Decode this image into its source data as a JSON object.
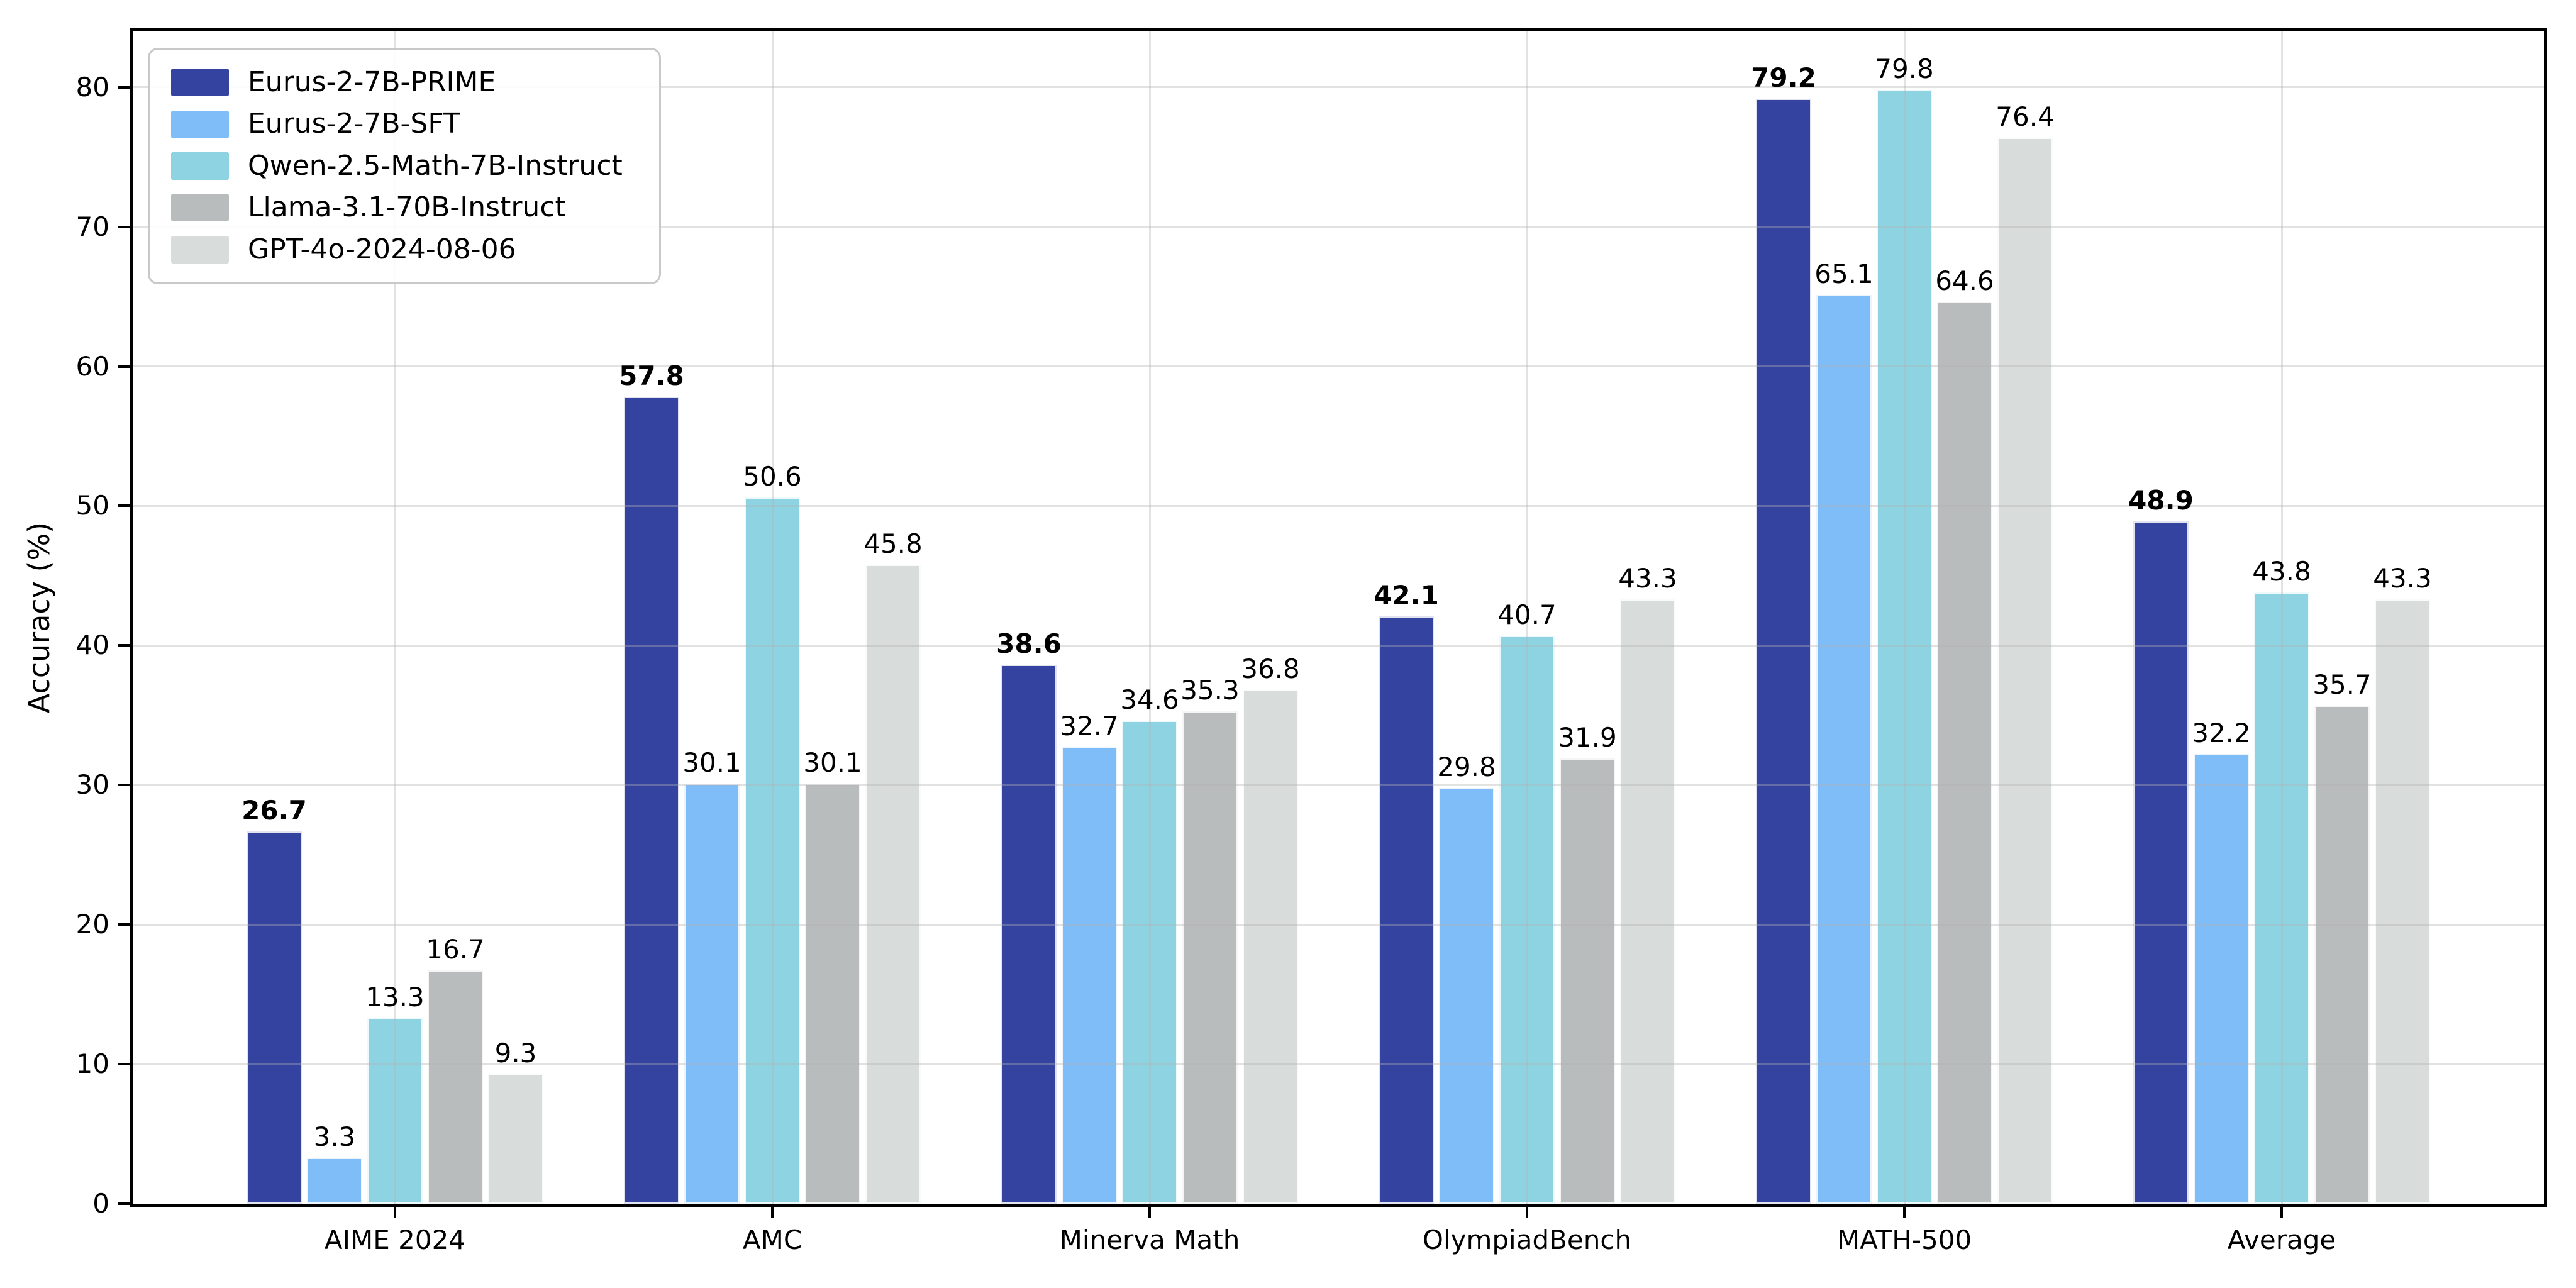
{
  "figure": {
    "background": "#ffffff"
  },
  "colors": {
    "spine": "#000000",
    "grid": "#e5e5e5",
    "text": "#000000",
    "legend_border": "#c9c9c9",
    "legend_background": "#ffffff"
  },
  "y_axis": {
    "title": "Accuracy (%)"
  },
  "chart_data": {
    "type": "bar",
    "title": "",
    "xlabel": "",
    "ylabel": "Accuracy (%)",
    "ylim": [
      0,
      84
    ],
    "yticks": [
      0,
      10,
      20,
      30,
      40,
      50,
      60,
      70,
      80
    ],
    "grid": true,
    "grid_vertical_at_categories": true,
    "legend_position": "upper-left",
    "value_labels": true,
    "categories": [
      "AIME 2024",
      "AMC",
      "Minerva Math",
      "OlympiadBench",
      "MATH-500",
      "Average"
    ],
    "series": [
      {
        "name": "Eurus-2-7B-PRIME",
        "color": "#3543a0",
        "labels_bold": true,
        "values": [
          26.7,
          57.8,
          38.6,
          42.1,
          79.2,
          48.9
        ]
      },
      {
        "name": "Eurus-2-7B-SFT",
        "color": "#7ebdf7",
        "labels_bold": false,
        "values": [
          3.3,
          30.1,
          32.7,
          29.8,
          65.1,
          32.2
        ]
      },
      {
        "name": "Qwen-2.5-Math-7B-Instruct",
        "color": "#8dd3e2",
        "labels_bold": false,
        "values": [
          13.3,
          50.6,
          34.6,
          40.7,
          79.8,
          43.8
        ]
      },
      {
        "name": "Llama-3.1-70B-Instruct",
        "color": "#b9bcbc",
        "labels_bold": false,
        "values": [
          16.7,
          30.1,
          35.3,
          31.9,
          64.6,
          35.7
        ]
      },
      {
        "name": "GPT-4o-2024-08-06",
        "color": "#d8dcdb",
        "labels_bold": false,
        "values": [
          9.3,
          45.8,
          36.8,
          43.3,
          76.4,
          43.3
        ]
      }
    ]
  }
}
